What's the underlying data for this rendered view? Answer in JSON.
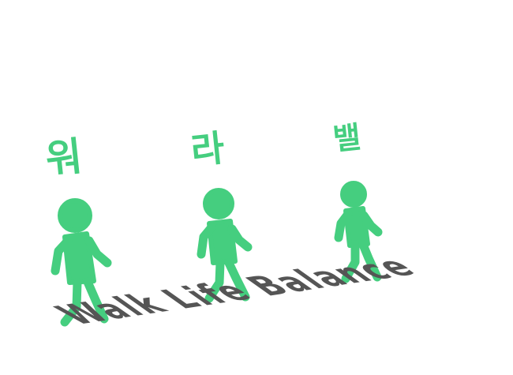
{
  "syllables": [
    {
      "text": "워"
    },
    {
      "text": "라"
    },
    {
      "text": "밸"
    }
  ],
  "tagline": "Walk Life Balance",
  "colors": {
    "figure": "#45ce7f",
    "text_green": "#45ce7f",
    "tagline": "#555555",
    "background": "#ffffff"
  },
  "icons": [
    "walking-person-icon",
    "walking-person-icon",
    "walking-person-icon"
  ]
}
